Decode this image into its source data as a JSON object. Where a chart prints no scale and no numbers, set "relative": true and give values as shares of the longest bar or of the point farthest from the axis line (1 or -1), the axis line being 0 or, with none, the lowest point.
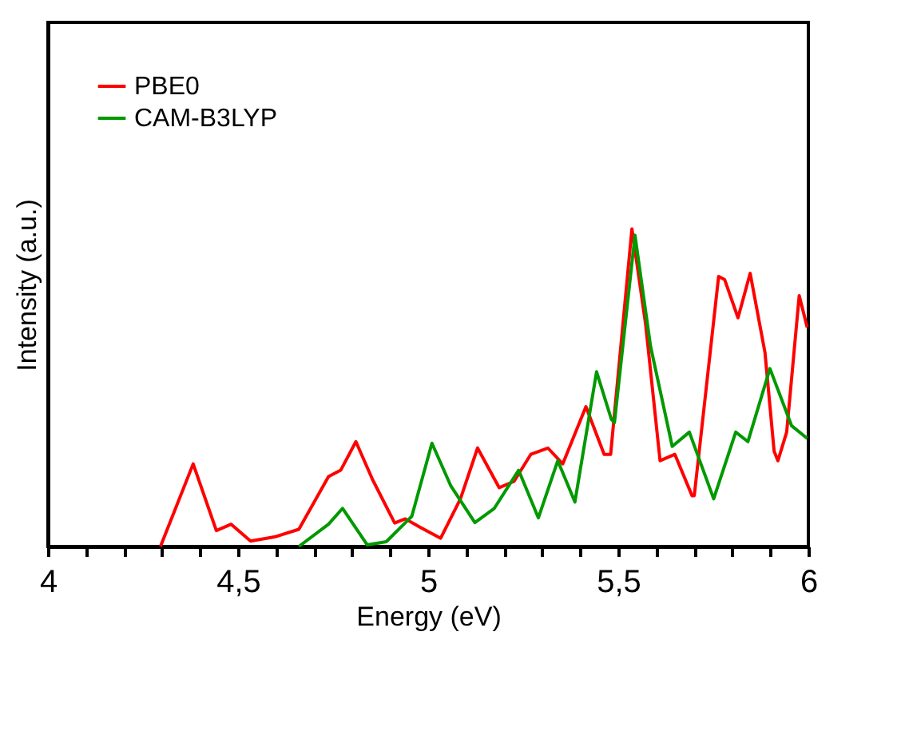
{
  "chart_data": {
    "type": "line",
    "xlabel": "Energy (eV)",
    "ylabel": "Intensity (a.u.)",
    "relative": true,
    "xlim": [
      4,
      6
    ],
    "xticks": [
      4,
      {
        "value": 4.1,
        "label": null
      },
      {
        "value": 4.2,
        "label": null
      },
      {
        "value": 4.3,
        "label": null
      },
      {
        "value": 4.4,
        "label": null
      },
      {
        "value": 4.5,
        "label": "4,5"
      },
      {
        "value": 4.6,
        "label": null
      },
      {
        "value": 4.7,
        "label": null
      },
      {
        "value": 4.8,
        "label": null
      },
      {
        "value": 4.9,
        "label": null
      },
      5,
      {
        "value": 5.1,
        "label": null
      },
      {
        "value": 5.2,
        "label": null
      },
      {
        "value": 5.3,
        "label": null
      },
      {
        "value": 5.4,
        "label": null
      },
      {
        "value": 5.5,
        "label": "5,5"
      },
      {
        "value": 5.6,
        "label": null
      },
      {
        "value": 5.7,
        "label": null
      },
      {
        "value": 5.8,
        "label": null
      },
      {
        "value": 5.9,
        "label": null
      },
      6
    ],
    "tick_labels": "x",
    "grid": false,
    "legend": "top left",
    "marker": "none",
    "line_style": "solid",
    "series": [
      {
        "name": "PBE0",
        "color": "#ff0000",
        "x": [
          4.296,
          4.382,
          4.443,
          4.482,
          4.533,
          4.596,
          4.66,
          4.738,
          4.77,
          4.81,
          4.854,
          4.912,
          4.94,
          4.98,
          5.033,
          5.085,
          5.13,
          5.187,
          5.226,
          5.27,
          5.315,
          5.354,
          5.415,
          5.463,
          5.48,
          5.536,
          5.572,
          5.61,
          5.649,
          5.694,
          5.7,
          5.764,
          5.78,
          5.815,
          5.847,
          5.886,
          5.91,
          5.92,
          5.943,
          5.976,
          5.997
        ],
        "values": [
          0,
          0.26,
          0.05,
          0.07,
          0.017,
          0.03,
          0.054,
          0.22,
          0.24,
          0.33,
          0.21,
          0.074,
          0.087,
          0.06,
          0.026,
          0.15,
          0.31,
          0.185,
          0.205,
          0.29,
          0.31,
          0.26,
          0.44,
          0.29,
          0.29,
          1.0,
          0.7,
          0.27,
          0.29,
          0.16,
          0.16,
          0.85,
          0.84,
          0.72,
          0.86,
          0.61,
          0.3,
          0.27,
          0.36,
          0.79,
          0.69
        ]
      },
      {
        "name": "CAM-B3LYP",
        "color": "#009900",
        "x": [
          4.66,
          4.738,
          4.775,
          4.84,
          4.89,
          4.957,
          5.01,
          5.06,
          5.123,
          5.174,
          5.238,
          5.29,
          5.341,
          5.386,
          5.443,
          5.482,
          5.49,
          5.544,
          5.585,
          5.642,
          5.687,
          5.751,
          5.809,
          5.841,
          5.899,
          5.956,
          5.997
        ],
        "values": [
          0,
          0.07,
          0.12,
          0.005,
          0.015,
          0.095,
          0.325,
          0.19,
          0.075,
          0.12,
          0.24,
          0.09,
          0.27,
          0.14,
          0.55,
          0.4,
          0.39,
          0.98,
          0.63,
          0.315,
          0.36,
          0.15,
          0.36,
          0.33,
          0.56,
          0.38,
          0.34
        ]
      }
    ]
  }
}
